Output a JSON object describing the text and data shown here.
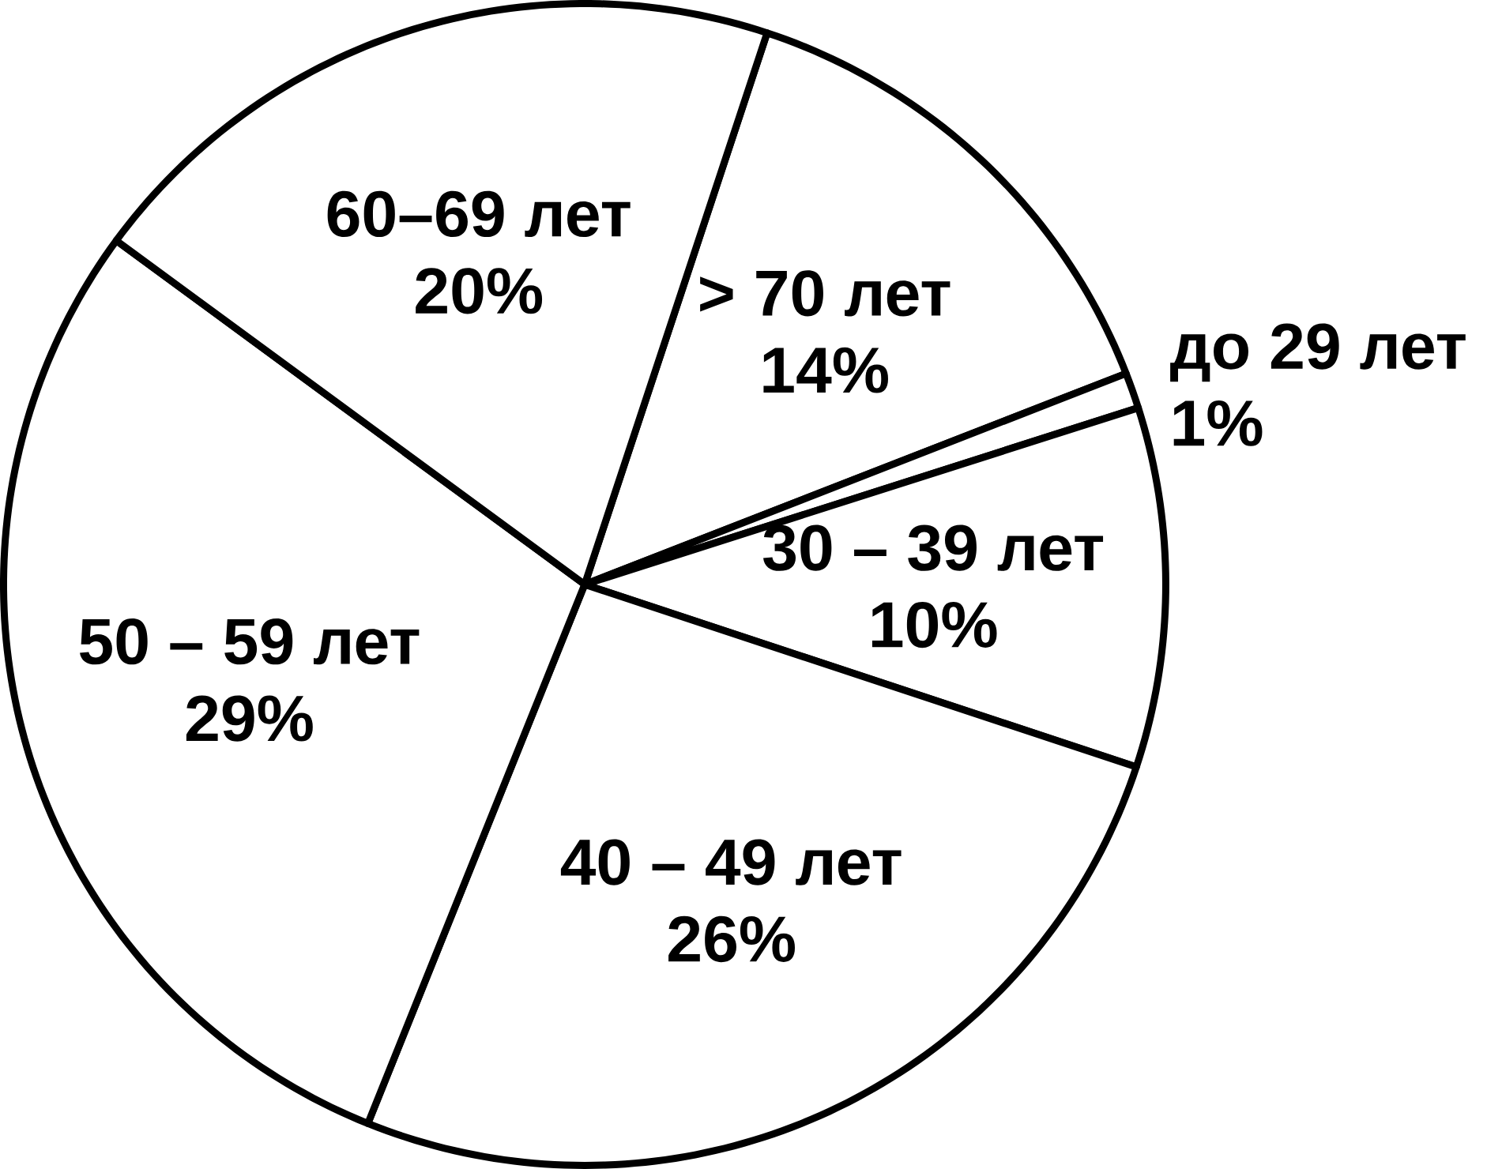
{
  "chart_data": {
    "type": "pie",
    "categories": [
      "> 70 лет",
      "до 29 лет",
      "30 – 39 лет",
      "40 – 49 лет",
      "50 – 59 лет",
      "60–69 лет"
    ],
    "values": [
      14,
      1,
      10,
      26,
      29,
      20
    ],
    "value_labels": [
      "14%",
      "1%",
      "10%",
      "26%",
      "29%",
      "20%"
    ],
    "colors": [
      "#ffffff",
      "#ffffff",
      "#ffffff",
      "#ffffff",
      "#ffffff",
      "#ffffff"
    ]
  }
}
